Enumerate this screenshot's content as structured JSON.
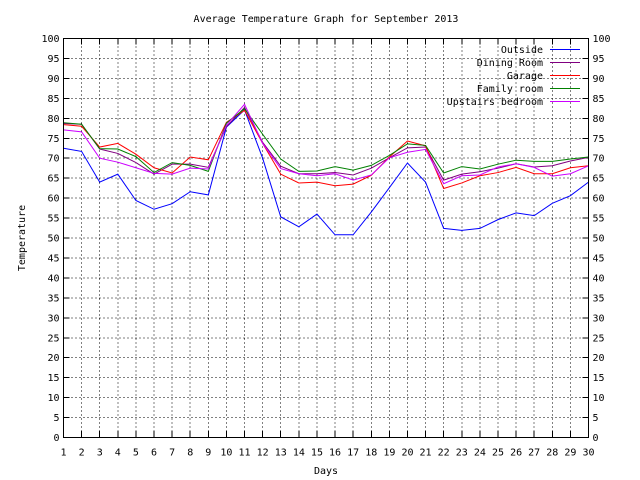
{
  "chart_data": {
    "type": "line",
    "title": "Average Temperature Graph for September 2013",
    "xlabel": "Days",
    "ylabel": "Temperature",
    "xlim": [
      1,
      30
    ],
    "ylim": [
      0,
      100
    ],
    "x_ticks": [
      "1",
      "2",
      "3",
      "4",
      "5",
      "6",
      "7",
      "8",
      "9",
      "10",
      "11",
      "12",
      "13",
      "14",
      "15",
      "16",
      "17",
      "18",
      "19",
      "20",
      "21",
      "22",
      "23",
      "24",
      "25",
      "26",
      "27",
      "28",
      "29",
      "30"
    ],
    "y_ticks": [
      "0",
      "5",
      "10",
      "15",
      "20",
      "25",
      "30",
      "35",
      "40",
      "45",
      "50",
      "55",
      "60",
      "65",
      "70",
      "75",
      "80",
      "85",
      "90",
      "95",
      "100"
    ],
    "grid": true,
    "legend_position": "top-right",
    "x": [
      1,
      2,
      3,
      4,
      5,
      6,
      7,
      8,
      9,
      10,
      11,
      12,
      13,
      14,
      15,
      16,
      17,
      18,
      19,
      20,
      21,
      22,
      23,
      24,
      25,
      26,
      27,
      28,
      29,
      30
    ],
    "series": [
      {
        "name": "Outside",
        "color": "#0000ff",
        "values": [
          72.5,
          71.7,
          64.0,
          66.0,
          59.4,
          57.2,
          58.6,
          61.6,
          60.8,
          77.8,
          82.1,
          70.0,
          55.3,
          52.8,
          56.0,
          50.8,
          50.8,
          56.5,
          62.6,
          68.8,
          64.0,
          52.4,
          51.9,
          52.4,
          54.6,
          56.3,
          55.6,
          58.7,
          60.6,
          64.0
        ]
      },
      {
        "name": "Dining Room",
        "color": "#800080",
        "values": [
          78.7,
          78.5,
          72.3,
          71.2,
          68.9,
          66.0,
          68.5,
          68.5,
          67.7,
          77.9,
          82.7,
          74.0,
          68.0,
          66.1,
          66.1,
          66.4,
          65.8,
          67.5,
          70.1,
          72.6,
          72.8,
          64.5,
          66.0,
          66.6,
          67.5,
          68.6,
          67.8,
          68.1,
          69.3,
          70.2
        ]
      },
      {
        "name": "Garage",
        "color": "#ff0000",
        "values": [
          78.4,
          78.0,
          72.8,
          73.7,
          71.0,
          67.6,
          66.3,
          70.3,
          69.6,
          79.0,
          82.0,
          73.7,
          66.0,
          63.8,
          64.0,
          63.1,
          63.5,
          65.7,
          70.3,
          74.3,
          73.1,
          62.4,
          63.8,
          65.6,
          66.4,
          67.7,
          66.1,
          66.1,
          67.6,
          68.1
        ]
      },
      {
        "name": "Family room",
        "color": "#008000",
        "values": [
          78.9,
          78.5,
          72.4,
          72.3,
          70.4,
          66.4,
          68.9,
          68.2,
          66.7,
          78.8,
          82.4,
          76.0,
          69.8,
          66.7,
          66.8,
          67.9,
          67.0,
          68.2,
          70.7,
          73.6,
          73.2,
          66.3,
          67.9,
          67.3,
          68.5,
          69.5,
          69.2,
          69.2,
          69.8,
          70.3
        ]
      },
      {
        "name": "Upstairs bedroom",
        "color": "#cc00ff",
        "values": [
          77.1,
          76.6,
          70.0,
          69.0,
          67.6,
          66.2,
          66.0,
          67.5,
          67.3,
          78.3,
          83.5,
          73.7,
          67.4,
          66.1,
          65.6,
          66.1,
          64.5,
          65.8,
          70.1,
          71.5,
          72.2,
          63.6,
          65.6,
          65.8,
          67.8,
          68.6,
          67.7,
          65.5,
          66.1,
          68.1
        ]
      }
    ]
  }
}
